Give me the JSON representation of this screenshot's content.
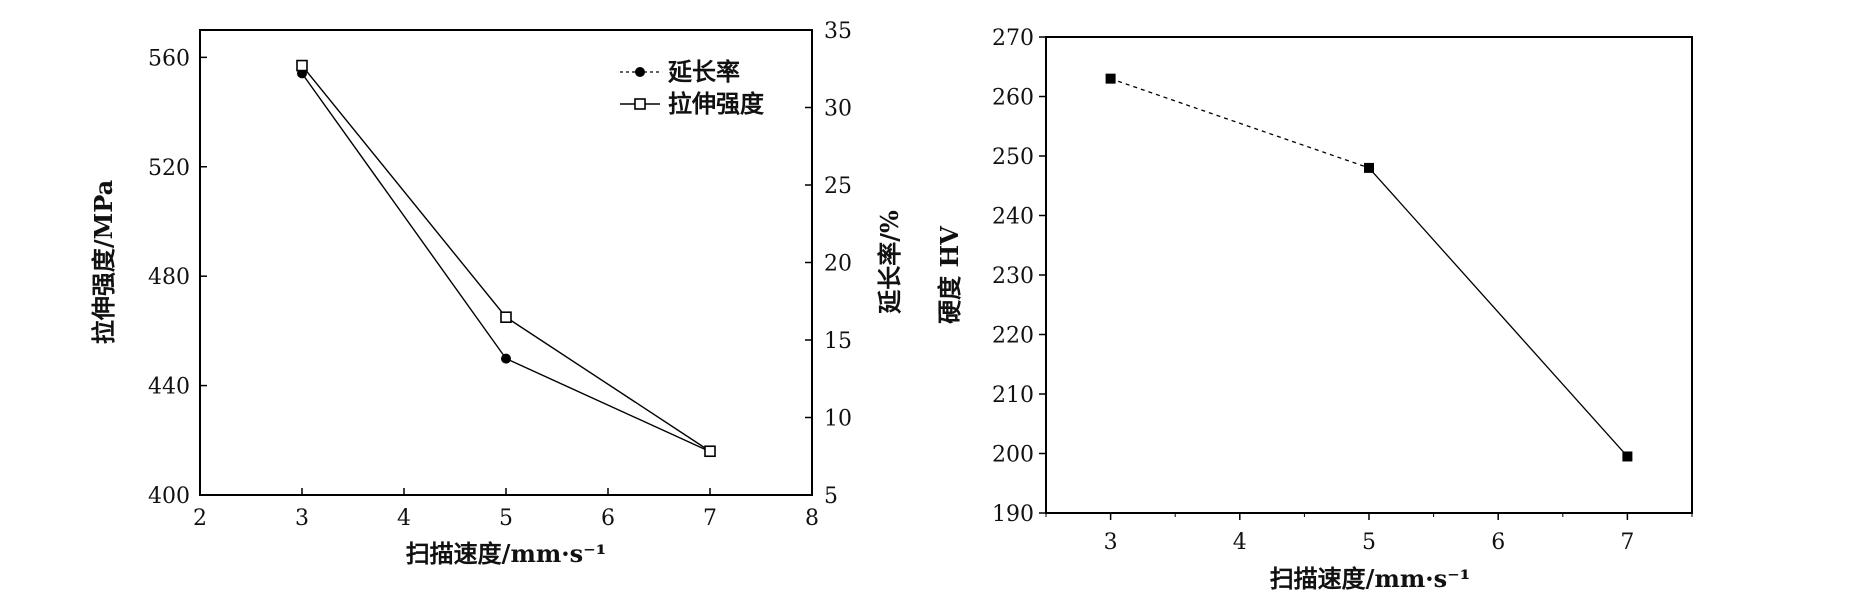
{
  "chart_data": [
    {
      "type": "line",
      "xlabel": "扫描速度/mm·s⁻¹",
      "ylabel_left": "拉伸强度/MPa",
      "ylabel_right": "延长率/%",
      "xlim": [
        2,
        8
      ],
      "xticks": [
        "2",
        "3",
        "4",
        "5",
        "6",
        "7",
        "8"
      ],
      "ylim_left": [
        400,
        570
      ],
      "yticks_left": [
        "400",
        "440",
        "480",
        "520",
        "560"
      ],
      "ylim_right": [
        5,
        35
      ],
      "yticks_right": [
        "5",
        "10",
        "15",
        "20",
        "25",
        "30",
        "35"
      ],
      "legend": {
        "placement": "top-right"
      },
      "series": [
        {
          "name": "延长率",
          "marker": "filled-circle",
          "axis": "right",
          "x": [
            3,
            5,
            7
          ],
          "y": [
            32.2,
            13.8,
            7.8
          ]
        },
        {
          "name": "拉伸强度",
          "marker": "open-square",
          "axis": "left",
          "x": [
            3,
            5,
            7
          ],
          "y": [
            557,
            465,
            416
          ]
        }
      ]
    },
    {
      "type": "line",
      "xlabel": "扫描速度/mm·s⁻¹",
      "ylabel": "硬度 HV",
      "xlim": [
        2.5,
        7.5
      ],
      "xticks": [
        "3",
        "4",
        "5",
        "6",
        "7"
      ],
      "ylim": [
        190,
        270
      ],
      "yticks": [
        "190",
        "200",
        "210",
        "220",
        "230",
        "240",
        "250",
        "260",
        "270"
      ],
      "series": [
        {
          "marker": "filled-square",
          "x": [
            3,
            5,
            7
          ],
          "y": [
            263,
            248,
            199.5
          ]
        }
      ]
    }
  ]
}
